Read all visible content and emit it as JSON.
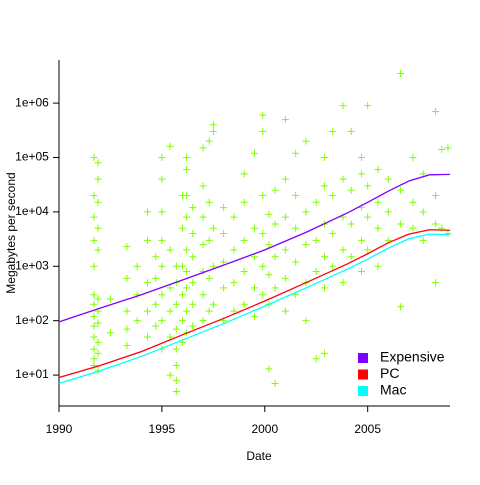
{
  "chart_data": [
    {
      "type": "scatter",
      "xlabel": "Date",
      "ylabel": "Megabytes per second",
      "color": "#7fff00",
      "log_y": true,
      "xlim": [
        1990,
        2009
      ],
      "ylim": [
        2.7,
        6200000
      ],
      "xticks": [
        1990,
        1995,
        2000,
        2005
      ],
      "yticks": [
        {
          "value": 10,
          "label": "1e+01"
        },
        {
          "value": 100,
          "label": "1e+02"
        },
        {
          "value": 1000,
          "label": "1e+03"
        },
        {
          "value": 10000,
          "label": "1e+04"
        },
        {
          "value": 100000,
          "label": "1e+05"
        },
        {
          "value": 1000000,
          "label": "1e+06"
        }
      ],
      "x": [
        1991.7,
        1991.7,
        1991.7,
        1991.7,
        1991.7,
        1991.7,
        1991.7,
        1991.7,
        1991.7,
        1991.7,
        1991.7,
        1991.7,
        1991.7,
        1991.9,
        1991.9,
        1991.9,
        1991.9,
        1991.9,
        1991.9,
        1991.9,
        1991.9,
        1991.9,
        1991.9,
        1991.9,
        1992.5,
        1992.5,
        1993.3,
        1993.3,
        1993.3,
        1993.3,
        1993.3,
        1993.8,
        1993.8,
        1993.8,
        1994.3,
        1994.3,
        1994.3,
        1994.3,
        1994.3,
        1994.7,
        1994.7,
        1994.7,
        1994.7,
        1995.0,
        1995.0,
        1995.0,
        1995.0,
        1995.0,
        1995.0,
        1995.0,
        1995.0,
        1995.4,
        1995.4,
        1995.4,
        1995.4,
        1995.4,
        1995.4,
        1995.7,
        1995.7,
        1995.7,
        1995.7,
        1995.7,
        1995.7,
        1995.7,
        1995.7,
        1996.0,
        1996.0,
        1996.0,
        1996.0,
        1996.0,
        1996.0,
        1996.2,
        1996.2,
        1996.2,
        1996.2,
        1996.2,
        1996.2,
        1996.2,
        1996.2,
        1996.2,
        1996.5,
        1996.5,
        1996.5,
        1996.5,
        1996.5,
        1996.5,
        1997.0,
        1997.0,
        1997.0,
        1997.0,
        1997.0,
        1997.0,
        1997.0,
        1997.3,
        1997.3,
        1997.3,
        1997.3,
        1997.3,
        1997.5,
        1997.5,
        1997.5,
        1997.5,
        1997.5,
        1998.0,
        1998.0,
        1998.0,
        1998.0,
        1998.0,
        1998.5,
        1998.5,
        1998.5,
        1998.5,
        1999.0,
        1999.0,
        1999.0,
        1999.0,
        1999.0,
        1999.5,
        1999.5,
        1999.5,
        1999.5,
        1999.5,
        1999.9,
        1999.9,
        1999.9,
        1999.9,
        1999.9,
        1999.9,
        2000.2,
        2000.2,
        2000.2,
        2000.2,
        2000.2,
        2000.5,
        2000.5,
        2000.5,
        2000.5,
        2000.5,
        2001.0,
        2001.0,
        2001.0,
        2001.0,
        2001.0,
        2001.0,
        2001.5,
        2001.5,
        2001.5,
        2001.5,
        2001.5,
        2002.0,
        2002.0,
        2002.0,
        2002.0,
        2002.0,
        2002.5,
        2002.5,
        2002.5,
        2002.5,
        2002.9,
        2002.9,
        2002.9,
        2002.9,
        2002.9,
        2002.9,
        2003.3,
        2003.3,
        2003.3,
        2003.3,
        2003.8,
        2003.8,
        2003.8,
        2003.8,
        2003.8,
        2004.2,
        2004.2,
        2004.2,
        2004.2,
        2004.7,
        2004.7,
        2004.7,
        2004.7,
        2004.7,
        2005.0,
        2005.0,
        2005.0,
        2005.0,
        2005.5,
        2005.5,
        2005.5,
        2005.5,
        2006.0,
        2006.0,
        2006.0,
        2006.6,
        2006.6,
        2006.6,
        2006.6,
        2007.2,
        2007.2,
        2007.2,
        2007.7,
        2007.7,
        2007.7,
        2008.3,
        2008.3,
        2008.3,
        2008.3,
        2008.6,
        2008.6,
        2008.9,
        2008.9
      ],
      "values": [
        15,
        20,
        30,
        50,
        80,
        120,
        200,
        300,
        1000,
        3000,
        8000,
        20000,
        100000,
        12,
        25,
        40,
        90,
        150,
        250,
        2000,
        5000,
        15000,
        40000,
        80000,
        60,
        250,
        35,
        70,
        150,
        600,
        2300,
        100,
        300,
        1000,
        50,
        150,
        500,
        3000,
        10000,
        80,
        200,
        600,
        1500,
        30,
        100,
        300,
        1000,
        3000,
        10000,
        40000,
        100000,
        10,
        50,
        150,
        400,
        2000,
        160000,
        5,
        8,
        15,
        30,
        70,
        200,
        500,
        1000,
        40,
        100,
        300,
        1000,
        5000,
        20000,
        60,
        150,
        400,
        800,
        2000,
        8000,
        20000,
        60000,
        100000,
        80,
        200,
        500,
        1500,
        4000,
        12000,
        100,
        300,
        800,
        2500,
        8000,
        30000,
        150000,
        150,
        600,
        3000,
        15000,
        200000,
        200,
        1000,
        5000,
        300000,
        400000,
        100,
        400,
        1200,
        4000,
        12000,
        150,
        500,
        2000,
        8000,
        200,
        800,
        3000,
        15000,
        50000,
        120,
        400,
        1500,
        5000,
        120000,
        300,
        1000,
        4000,
        20000,
        300000,
        600000,
        13,
        200,
        700,
        2500,
        9000,
        7,
        400,
        1500,
        6000,
        25000,
        150,
        600,
        2000,
        8000,
        40000,
        500000,
        300,
        1200,
        5000,
        20000,
        120000,
        100,
        500,
        2500,
        10000,
        200000,
        20,
        800,
        3000,
        15000,
        25,
        400,
        1500,
        6000,
        30000,
        100000,
        1000,
        4000,
        20000,
        300000,
        500,
        2000,
        8000,
        40000,
        900000,
        1500,
        6000,
        25000,
        300000,
        800,
        3000,
        12000,
        50000,
        100000,
        2000,
        8000,
        30000,
        900000,
        1000,
        5000,
        15000,
        60000,
        3000,
        10000,
        40000,
        180,
        6000,
        25000,
        3500000,
        5000,
        15000,
        100000,
        3000,
        10000,
        50000,
        500,
        6000,
        20000,
        700000,
        5000,
        140000,
        4000,
        150000
      ]
    },
    {
      "type": "line",
      "legend": "bottom-right",
      "x": [
        1990,
        1992,
        1994,
        1996,
        1998,
        2000,
        2002,
        2004,
        2005,
        2006,
        2007,
        2008,
        2009
      ],
      "series": [
        {
          "name": "Expensive",
          "color": "#8000ff",
          "values": [
            95,
            170,
            300,
            560,
            1050,
            2000,
            4200,
            9500,
            15000,
            24000,
            37000,
            48000,
            49000
          ]
        },
        {
          "name": "PC",
          "color": "#ff0000",
          "values": [
            9,
            15,
            27,
            55,
            110,
            230,
            500,
            1100,
            1700,
            2700,
            3900,
            4700,
            4600
          ]
        },
        {
          "name": "Mac",
          "color": "#00ffff",
          "values": [
            7,
            12,
            22,
            44,
            88,
            185,
            400,
            880,
            1350,
            2150,
            3200,
            3900,
            3800
          ]
        }
      ]
    }
  ]
}
